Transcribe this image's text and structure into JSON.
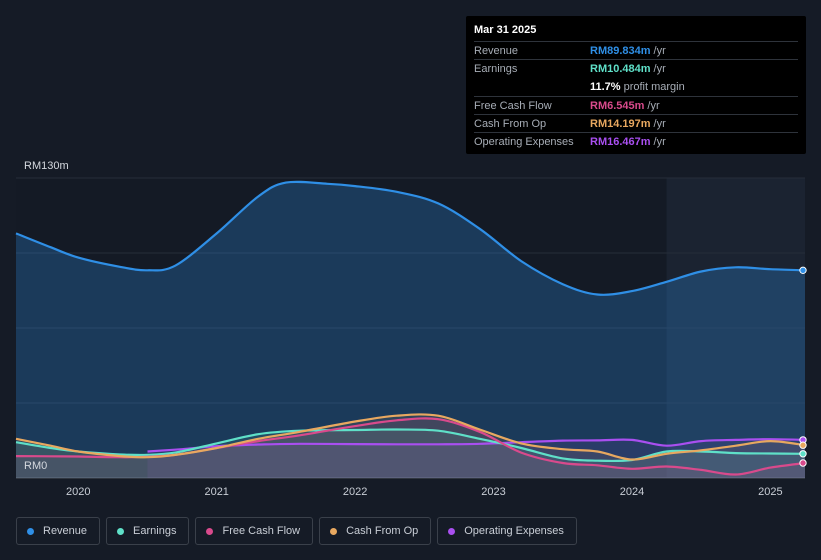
{
  "tooltip": {
    "date": "Mar 31 2025",
    "rows": [
      {
        "label": "Revenue",
        "value": "RM89.834m",
        "unit": "/yr",
        "color": "#2f8fe6"
      },
      {
        "label": "Earnings",
        "value": "RM10.484m",
        "unit": "/yr",
        "color": "#5fe0c8"
      },
      {
        "label": "",
        "value": "11.7%",
        "unit": "profit margin",
        "color": "#ffffff"
      },
      {
        "label": "Free Cash Flow",
        "value": "RM6.545m",
        "unit": "/yr",
        "color": "#d94a8c"
      },
      {
        "label": "Cash From Op",
        "value": "RM14.197m",
        "unit": "/yr",
        "color": "#e8a860"
      },
      {
        "label": "Operating Expenses",
        "value": "RM16.467m",
        "unit": "/yr",
        "color": "#a94ff0"
      }
    ]
  },
  "legend": [
    {
      "label": "Revenue",
      "color": "#2f8fe6"
    },
    {
      "label": "Earnings",
      "color": "#5fe0c8"
    },
    {
      "label": "Free Cash Flow",
      "color": "#d94a8c"
    },
    {
      "label": "Cash From Op",
      "color": "#e8a860"
    },
    {
      "label": "Operating Expenses",
      "color": "#a94ff0"
    }
  ],
  "chart_data": {
    "type": "area",
    "y_labels": {
      "top": "RM130m",
      "bottom": "RM0"
    },
    "ylim": [
      0,
      130
    ],
    "xlim": [
      2019.55,
      2025.25
    ],
    "forecast_start": 2024.25,
    "x_ticks": [
      2020,
      2021,
      2022,
      2023,
      2024,
      2025
    ],
    "grid": true,
    "series": [
      {
        "name": "Revenue",
        "color": "#2f8fe6",
        "fill": true,
        "x": [
          2019.55,
          2019.8,
          2020.0,
          2020.3,
          2020.5,
          2020.7,
          2021.0,
          2021.3,
          2021.5,
          2021.8,
          2022.0,
          2022.3,
          2022.6,
          2022.9,
          2023.2,
          2023.5,
          2023.75,
          2024.0,
          2024.25,
          2024.5,
          2024.75,
          2025.0,
          2025.25
        ],
        "y": [
          106,
          100,
          95.5,
          91.5,
          90,
          92,
          106,
          122,
          128,
          127.5,
          126.5,
          124,
          119,
          108,
          94,
          84,
          79.5,
          81,
          85,
          89.5,
          91.3,
          90.5,
          90
        ]
      },
      {
        "name": "Earnings",
        "color": "#5fe0c8",
        "fill": false,
        "x": [
          2019.55,
          2019.8,
          2020.0,
          2020.3,
          2020.5,
          2020.7,
          2021.0,
          2021.3,
          2021.6,
          2022.0,
          2022.3,
          2022.6,
          2022.9,
          2023.2,
          2023.5,
          2023.75,
          2024.0,
          2024.25,
          2024.5,
          2024.75,
          2025.0,
          2025.25
        ],
        "y": [
          15.5,
          13,
          11.5,
          10.2,
          10,
          11,
          15,
          19,
          20.5,
          20.8,
          21,
          20.5,
          17,
          13,
          8.5,
          7.5,
          7.8,
          11.5,
          11.5,
          10.8,
          10.6,
          10.5
        ]
      },
      {
        "name": "Free Cash Flow",
        "color": "#d94a8c",
        "fill": false,
        "x": [
          2019.55,
          2019.8,
          2020.0,
          2020.3,
          2020.5,
          2020.7,
          2021.0,
          2021.3,
          2021.6,
          2022.0,
          2022.3,
          2022.6,
          2022.9,
          2023.2,
          2023.5,
          2023.75,
          2024.0,
          2024.25,
          2024.5,
          2024.75,
          2025.0,
          2025.25
        ],
        "y": [
          9.5,
          9.4,
          9.3,
          9,
          9.2,
          10,
          13,
          16,
          18.5,
          22.5,
          25,
          25.5,
          20,
          11,
          6.5,
          5.5,
          4,
          5,
          3.5,
          1.5,
          4.5,
          6.5
        ]
      },
      {
        "name": "Cash From Op",
        "color": "#e8a860",
        "fill": false,
        "x": [
          2019.55,
          2019.8,
          2020.0,
          2020.3,
          2020.5,
          2020.7,
          2021.0,
          2021.3,
          2021.6,
          2022.0,
          2022.3,
          2022.6,
          2022.9,
          2023.2,
          2023.5,
          2023.75,
          2024.0,
          2024.25,
          2024.5,
          2024.75,
          2025.0,
          2025.25
        ],
        "y": [
          17,
          14,
          11.5,
          9.5,
          9,
          10,
          13,
          17,
          20,
          24.5,
          27,
          27,
          21,
          15,
          12.5,
          11.5,
          8,
          10.5,
          12,
          14,
          16,
          14.2
        ]
      },
      {
        "name": "Operating Expenses",
        "color": "#a94ff0",
        "fill": false,
        "x": [
          2020.5,
          2020.75,
          2021.0,
          2021.3,
          2021.6,
          2022.0,
          2022.3,
          2022.6,
          2022.9,
          2023.2,
          2023.5,
          2023.75,
          2024.0,
          2024.25,
          2024.5,
          2024.75,
          2025.0,
          2025.25
        ],
        "y": [
          11.5,
          12.5,
          13.8,
          14.5,
          14.8,
          14.7,
          14.6,
          14.6,
          14.8,
          15.5,
          16.2,
          16.3,
          16.5,
          14,
          16,
          16.5,
          16.8,
          16.5
        ]
      }
    ]
  }
}
